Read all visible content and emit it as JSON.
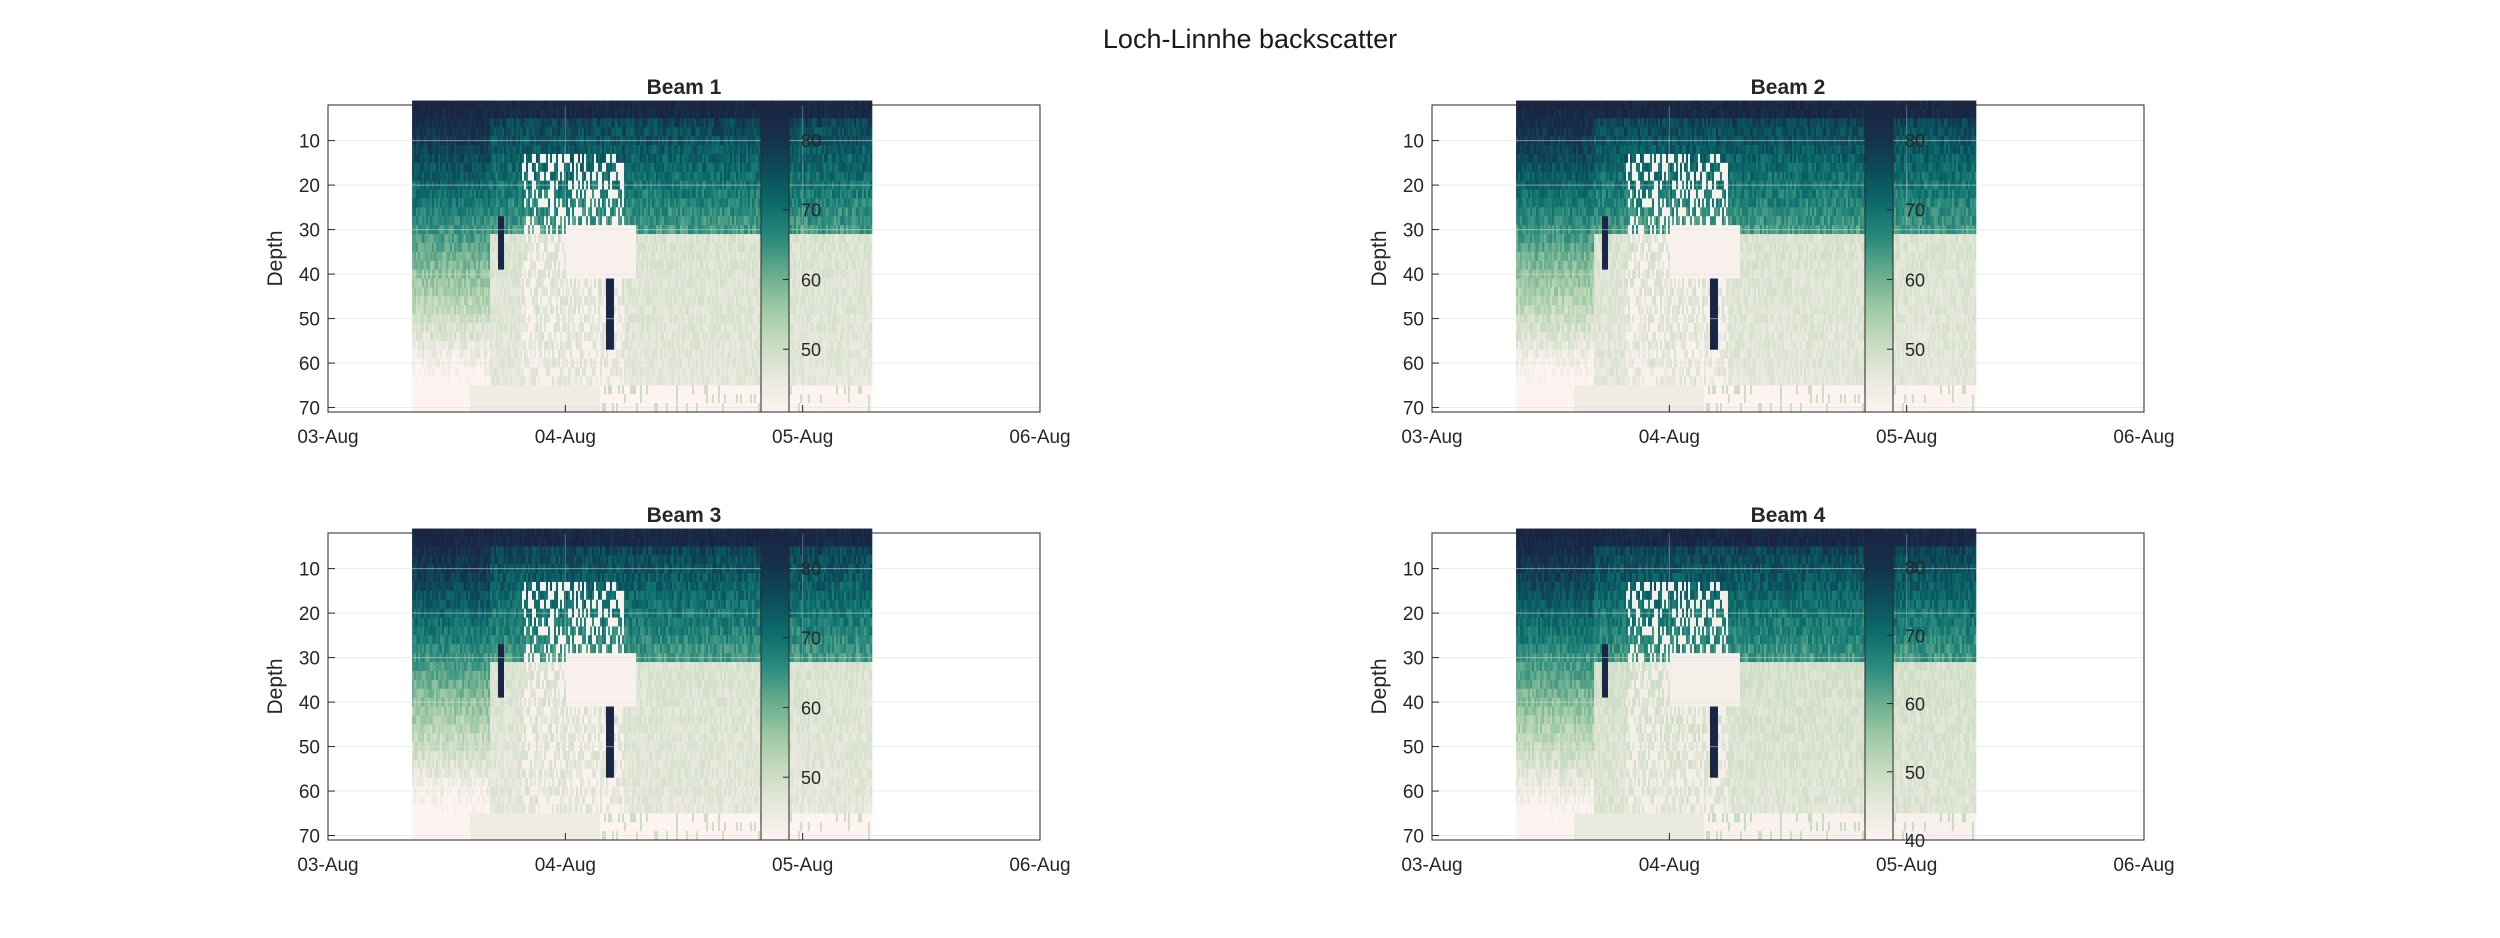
{
  "figure": {
    "title": "Loch-Linnhe backscatter"
  },
  "colors": {
    "colormap": [
      "#fdf3f1",
      "#e7e8dc",
      "#c8dcc1",
      "#9fcaa4",
      "#6aae8f",
      "#2f8d7e",
      "#0d6e6d",
      "#0c4e5c",
      "#15324d",
      "#1a2344"
    ],
    "axis": "#262626",
    "grid": "#dedede"
  },
  "chart_data": [
    {
      "type": "heatmap",
      "title": "Beam 1",
      "xlabel": "",
      "ylabel": "Depth",
      "x_ticks": [
        "03-Aug",
        "04-Aug",
        "05-Aug",
        "06-Aug"
      ],
      "x_range": [
        "03-Aug 00:00",
        "06-Aug 00:00"
      ],
      "data_x_range": [
        "03-Aug 08:30",
        "05-Aug 07:00"
      ],
      "y_ticks": [
        10,
        20,
        30,
        40,
        50,
        60,
        70
      ],
      "ylim": [
        2,
        71
      ],
      "y_reversed": true,
      "grid": true,
      "colorbar": {
        "ticks": [
          50,
          60,
          70,
          80
        ],
        "range": [
          41,
          85
        ]
      },
      "description_values": {
        "surface_max": 85,
        "deep_min": 42,
        "spike_at": "04-Aug 04:30",
        "spike_depth": 48
      }
    },
    {
      "type": "heatmap",
      "title": "Beam 2",
      "xlabel": "",
      "ylabel": "Depth",
      "x_ticks": [
        "03-Aug",
        "04-Aug",
        "05-Aug",
        "06-Aug"
      ],
      "x_range": [
        "03-Aug 00:00",
        "06-Aug 00:00"
      ],
      "data_x_range": [
        "03-Aug 08:30",
        "05-Aug 07:00"
      ],
      "y_ticks": [
        10,
        20,
        30,
        40,
        50,
        60,
        70
      ],
      "ylim": [
        2,
        71
      ],
      "y_reversed": true,
      "grid": true,
      "colorbar": {
        "ticks": [
          50,
          60,
          70,
          80
        ],
        "range": [
          41,
          85
        ]
      },
      "description_values": {
        "surface_max": 85,
        "deep_min": 42,
        "spike_at": "04-Aug 04:30",
        "spike_depth": 48
      }
    },
    {
      "type": "heatmap",
      "title": "Beam 3",
      "xlabel": "",
      "ylabel": "Depth",
      "x_ticks": [
        "03-Aug",
        "04-Aug",
        "05-Aug",
        "06-Aug"
      ],
      "x_range": [
        "03-Aug 00:00",
        "06-Aug 00:00"
      ],
      "data_x_range": [
        "03-Aug 08:30",
        "05-Aug 07:00"
      ],
      "y_ticks": [
        10,
        20,
        30,
        40,
        50,
        60,
        70
      ],
      "ylim": [
        2,
        71
      ],
      "y_reversed": true,
      "grid": true,
      "colorbar": {
        "ticks": [
          50,
          60,
          70,
          80
        ],
        "range": [
          41,
          85
        ]
      },
      "description_values": {
        "surface_max": 85,
        "deep_min": 42,
        "spike_at": "04-Aug 04:30",
        "spike_depth": 48
      }
    },
    {
      "type": "heatmap",
      "title": "Beam 4",
      "xlabel": "",
      "ylabel": "Depth",
      "x_ticks": [
        "03-Aug",
        "04-Aug",
        "05-Aug",
        "06-Aug"
      ],
      "x_range": [
        "03-Aug 00:00",
        "06-Aug 00:00"
      ],
      "data_x_range": [
        "03-Aug 08:30",
        "05-Aug 07:00"
      ],
      "y_ticks": [
        10,
        20,
        30,
        40,
        50,
        60,
        70
      ],
      "ylim": [
        2,
        71
      ],
      "y_reversed": true,
      "grid": true,
      "colorbar": {
        "ticks": [
          40,
          50,
          60,
          70,
          80
        ],
        "range": [
          40,
          85
        ]
      },
      "description_values": {
        "surface_max": 85,
        "deep_min": 42,
        "spike_at": "04-Aug 04:30",
        "spike_depth": 48
      }
    }
  ]
}
